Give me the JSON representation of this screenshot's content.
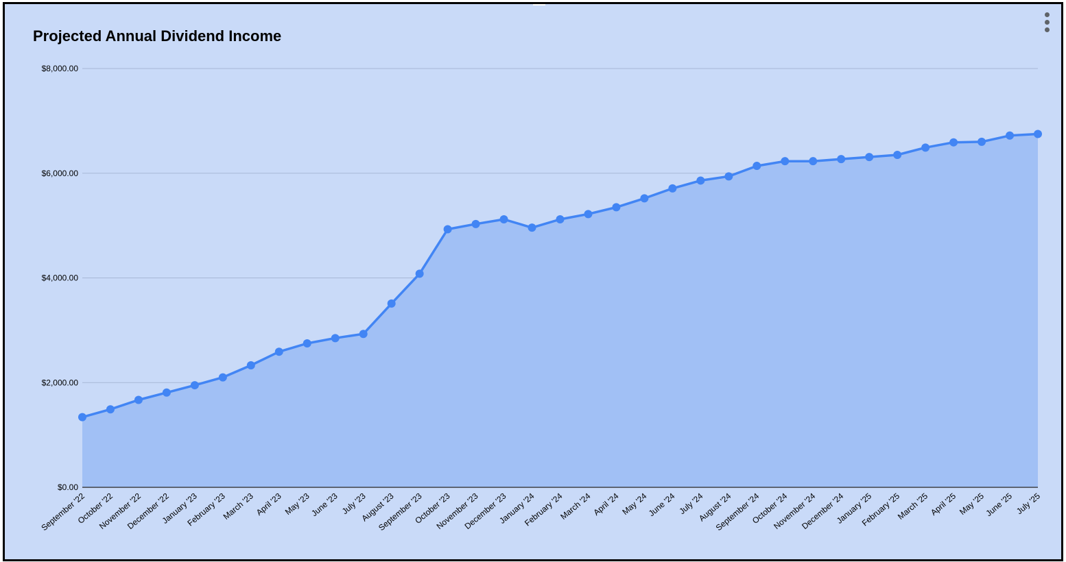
{
  "chart_data": {
    "type": "area",
    "title": "Projected Annual Dividend Income",
    "xlabel": "",
    "ylabel": "",
    "ylim": [
      0,
      8000
    ],
    "yticks": [
      0,
      2000,
      4000,
      6000,
      8000
    ],
    "ytick_labels": [
      "$0.00",
      "$2,000.00",
      "$4,000.00",
      "$6,000.00",
      "$8,000.00"
    ],
    "grid": true,
    "legend": "none",
    "categories": [
      "September '22",
      "October '22",
      "November '22",
      "December '22",
      "January '23",
      "February '23",
      "March '23",
      "April '23",
      "May '23",
      "June '23",
      "July '23",
      "August '23",
      "September '23",
      "October '23",
      "November '23",
      "December '23",
      "January '24",
      "February '24",
      "March '24",
      "April '24",
      "May '24",
      "June '24",
      "July '24",
      "August '24",
      "September '24",
      "October '24",
      "November '24",
      "December '24",
      "January '25",
      "February '25",
      "March '25",
      "April '25",
      "May '25",
      "June '25",
      "July '25"
    ],
    "values": [
      1340,
      1490,
      1670,
      1810,
      1950,
      2100,
      2330,
      2590,
      2750,
      2850,
      2930,
      3510,
      4080,
      4930,
      5030,
      5120,
      4960,
      5120,
      5220,
      5350,
      5520,
      5710,
      5860,
      5940,
      6140,
      6230,
      6230,
      6270,
      6310,
      6350,
      6490,
      6590,
      6600,
      6720,
      6750
    ],
    "colors": {
      "line": "#4285f4",
      "area": "#a1c0f5",
      "background": "#c9daf8",
      "grid": "#a7b7d6"
    }
  }
}
